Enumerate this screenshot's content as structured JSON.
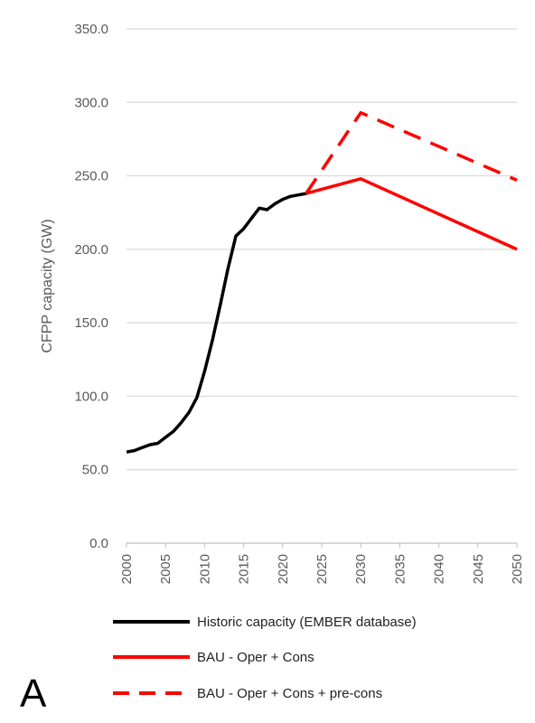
{
  "panel_label": "A",
  "chart_data": {
    "type": "line",
    "title": "",
    "xlabel": "",
    "ylabel": "CFPP capacity (GW)",
    "xlim": [
      2000,
      2050
    ],
    "ylim": [
      0,
      350
    ],
    "y_ticks": [
      "0.0",
      "50.0",
      "100.0",
      "150.0",
      "200.0",
      "250.0",
      "300.0",
      "350.0"
    ],
    "x_ticks": [
      "2000",
      "2005",
      "2010",
      "2015",
      "2020",
      "2025",
      "2030",
      "2035",
      "2040",
      "2045",
      "2050"
    ],
    "grid": "horizontal",
    "legend_position": "bottom",
    "series": [
      {
        "name": "Historic capacity (EMBER database)",
        "color": "#000000",
        "style": "solid",
        "x": [
          2000,
          2001,
          2002,
          2003,
          2004,
          2005,
          2006,
          2007,
          2008,
          2009,
          2010,
          2011,
          2012,
          2013,
          2014,
          2015,
          2016,
          2017,
          2018,
          2019,
          2020,
          2021,
          2022,
          2023
        ],
        "y": [
          62,
          63,
          65,
          67,
          68,
          72,
          76,
          82,
          89,
          99,
          117,
          138,
          162,
          187,
          209,
          214,
          221,
          228,
          227,
          231,
          234,
          236,
          237,
          238
        ]
      },
      {
        "name": "BAU - Oper + Cons",
        "color": "#ff0000",
        "style": "solid",
        "x": [
          2023,
          2030,
          2050
        ],
        "y": [
          238,
          248,
          200
        ]
      },
      {
        "name": "BAU - Oper + Cons + pre-cons",
        "color": "#ff0000",
        "style": "dashed",
        "x": [
          2023,
          2030,
          2050
        ],
        "y": [
          238,
          293,
          247
        ]
      }
    ]
  }
}
